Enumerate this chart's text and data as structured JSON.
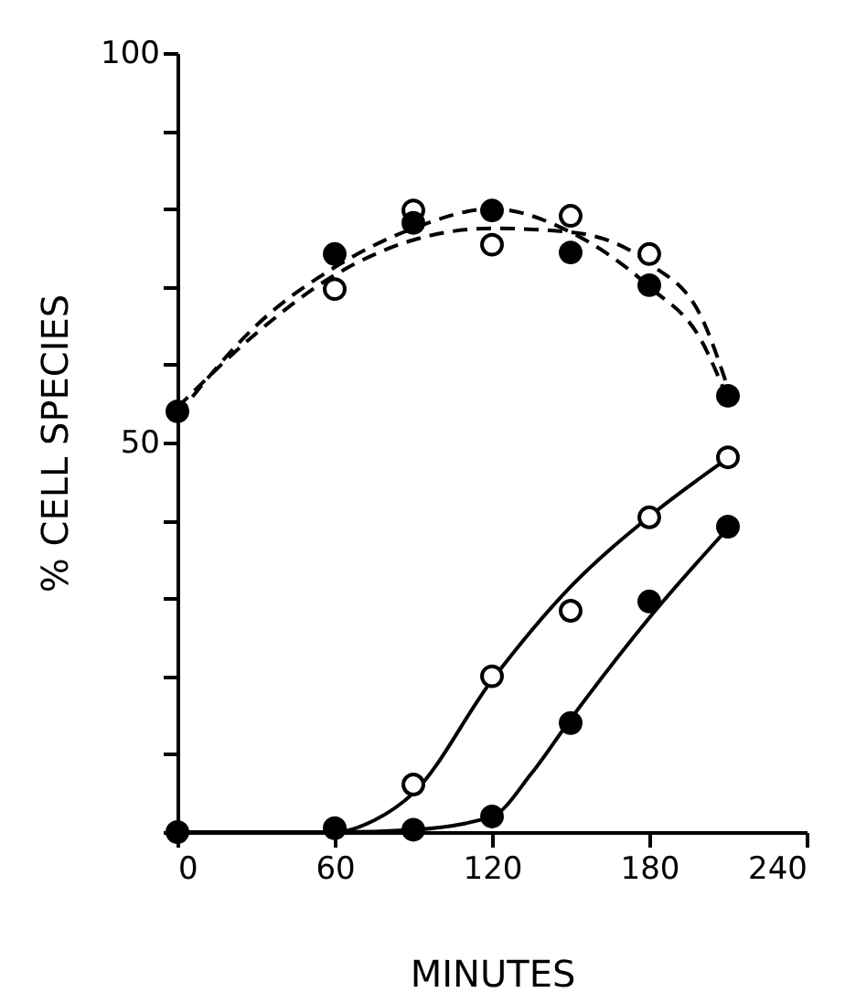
{
  "chart_data": {
    "type": "scatter",
    "xlabel": "MINUTES",
    "ylabel": "% CELL SPECIES",
    "xlim": [
      0,
      240
    ],
    "xticks": [
      0,
      60,
      120,
      180,
      240
    ],
    "ylim": [
      0,
      100
    ],
    "yticks": [
      {
        "value": 0,
        "label": null
      },
      {
        "value": 10,
        "label": null
      },
      {
        "value": 20,
        "label": null
      },
      {
        "value": 30,
        "label": null
      },
      {
        "value": 40,
        "label": null
      },
      50,
      {
        "value": 60,
        "label": null
      },
      {
        "value": 70,
        "label": null
      },
      {
        "value": 80,
        "label": null
      },
      {
        "value": 90,
        "label": null
      },
      100
    ],
    "grid": false,
    "series": [
      {
        "type": "line",
        "marker": "none",
        "line_style": "dashed",
        "color": "#000000",
        "x": [
          0,
          30,
          60,
          90,
          120,
          150,
          180,
          200,
          210
        ],
        "values": [
          54.5,
          64,
          71.5,
          76,
          77.5,
          77,
          73,
          66,
          57
        ]
      },
      {
        "type": "line",
        "marker": "none",
        "line_style": "dashed",
        "color": "#000000",
        "x": [
          0,
          30,
          60,
          90,
          120,
          150,
          180,
          200,
          210
        ],
        "values": [
          53.5,
          65,
          72.5,
          77.5,
          80,
          77,
          70,
          63,
          55.5
        ]
      },
      {
        "type": "line",
        "marker": "none",
        "line_style": "solid",
        "color": "#000000",
        "x": [
          0,
          60,
          75,
          90,
          120,
          150,
          180,
          210
        ],
        "values": [
          0,
          0,
          1.5,
          5,
          19.5,
          31.5,
          40.5,
          48
        ]
      },
      {
        "type": "line",
        "marker": "none",
        "line_style": "solid",
        "color": "#000000",
        "x": [
          0,
          60,
          90,
          120,
          135,
          150,
          180,
          210
        ],
        "values": [
          0,
          0,
          0.3,
          2,
          7.5,
          14.5,
          27.5,
          39
        ]
      },
      {
        "type": "scatter",
        "marker": "circle",
        "color": "#ffffff",
        "x": [
          60,
          90,
          120,
          150,
          180
        ],
        "values": [
          69.7,
          79.8,
          75.4,
          79.1,
          74.2
        ]
      },
      {
        "type": "scatter",
        "marker": "circle",
        "color": "#000000",
        "x": [
          0,
          60,
          90,
          120,
          150,
          180,
          210
        ],
        "values": [
          54,
          74.2,
          78.2,
          79.8,
          74.4,
          70.2,
          56
        ]
      },
      {
        "type": "scatter",
        "marker": "circle",
        "color": "#ffffff",
        "x": [
          90,
          120,
          150,
          180,
          210
        ],
        "values": [
          6.1,
          20,
          28.4,
          40.4,
          48.1
        ]
      },
      {
        "type": "scatter",
        "marker": "circle",
        "color": "#000000",
        "x": [
          0,
          60,
          90,
          120,
          150,
          180,
          210
        ],
        "values": [
          0,
          0.5,
          0.3,
          2,
          14,
          29.6,
          39.2
        ]
      }
    ]
  }
}
